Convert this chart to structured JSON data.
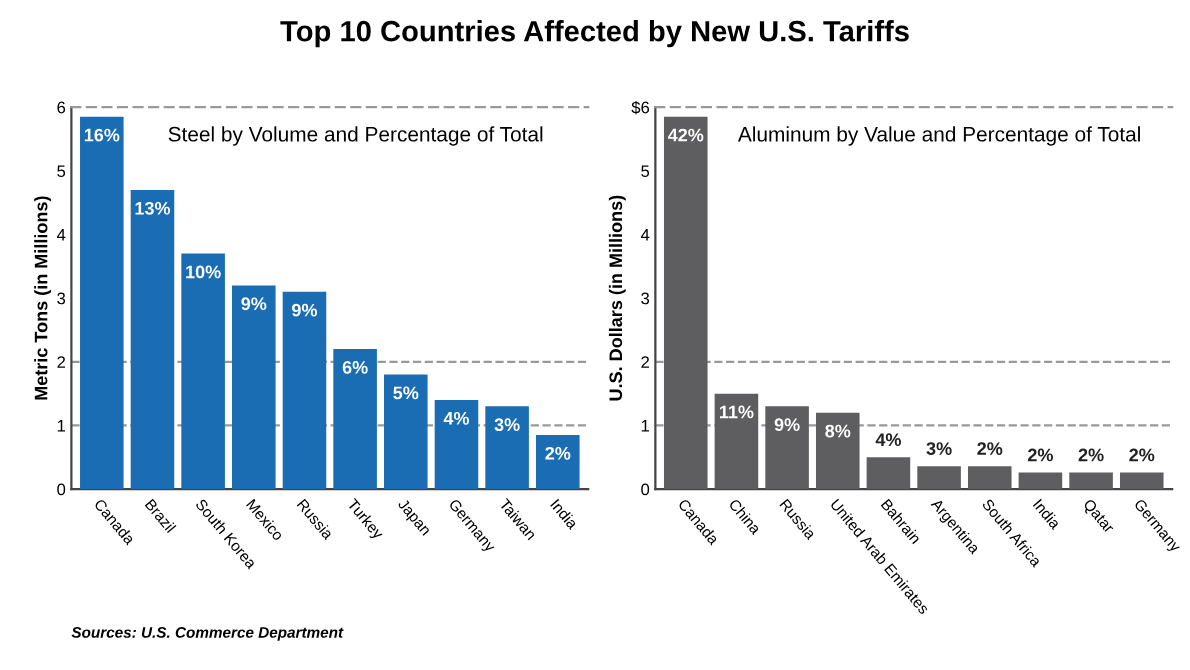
{
  "chart_data": [
    {
      "type": "bar",
      "title": "Top 10 Countries Affected by New U.S. Tariffs",
      "subtitle": "Steel by Volume and Percentage of Total",
      "ylabel": "Metric Tons (in Millions)",
      "categories": [
        "Canada",
        "Brazil",
        "South Korea",
        "Mexico",
        "Russia",
        "Turkey",
        "Japan",
        "Germany",
        "Taiwan",
        "India"
      ],
      "values": [
        5.85,
        4.7,
        3.7,
        3.2,
        3.1,
        2.2,
        1.8,
        1.4,
        1.3,
        0.85
      ],
      "color": "#1b6db3",
      "ylim": [
        0,
        6
      ],
      "yticks": [
        0,
        1,
        2,
        3,
        4,
        5,
        6
      ],
      "ref_lines": [
        {
          "axis": "y",
          "value": 1,
          "color": "#999999",
          "line_style": "dashed"
        },
        {
          "axis": "y",
          "value": 2,
          "color": "#999999",
          "line_style": "dashed"
        }
      ],
      "annotations": [
        {
          "text": "16%",
          "x": "Canada",
          "y": 5.85
        },
        {
          "text": "13%",
          "x": "Brazil",
          "y": 4.7
        },
        {
          "text": "10%",
          "x": "South Korea",
          "y": 3.7
        },
        {
          "text": "9%",
          "x": "Mexico",
          "y": 3.2
        },
        {
          "text": "9%",
          "x": "Russia",
          "y": 3.1
        },
        {
          "text": "6%",
          "x": "Turkey",
          "y": 2.2
        },
        {
          "text": "5%",
          "x": "Japan",
          "y": 1.8
        },
        {
          "text": "4%",
          "x": "Germany",
          "y": 1.4
        },
        {
          "text": "3%",
          "x": "Taiwan",
          "y": 1.3
        },
        {
          "text": "2%",
          "x": "India",
          "y": 0.85
        },
        "Sources: U.S. Commerce Department"
      ]
    },
    {
      "type": "bar",
      "subtitle": "Aluminum by Value and Percentage of Total",
      "ylabel": "U.S. Dollars (in Millions)",
      "categories": [
        "Canada",
        "China",
        "Russia",
        "United Arab Emirates",
        "Bahrain",
        "Argentina",
        "South Africa",
        "India",
        "Qatar",
        "Germany"
      ],
      "values": [
        5.85,
        1.5,
        1.3,
        1.2,
        0.5,
        0.36,
        0.36,
        0.26,
        0.26,
        0.26
      ],
      "color": "#5e5e60",
      "ylim": [
        0,
        6
      ],
      "yticks": [
        0,
        1,
        2,
        3,
        4,
        5,
        {
          "value": 6,
          "label": "$6"
        }
      ],
      "ref_lines": [
        {
          "axis": "y",
          "value": 1,
          "color": "#999999",
          "line_style": "dashed"
        },
        {
          "axis": "y",
          "value": 2,
          "color": "#999999",
          "line_style": "dashed"
        }
      ],
      "annotations": [
        {
          "text": "42%",
          "x": "Canada",
          "y": 5.85
        },
        {
          "text": "11%",
          "x": "China",
          "y": 1.5
        },
        {
          "text": "9%",
          "x": "Russia",
          "y": 1.3
        },
        {
          "text": "8%",
          "x": "United Arab Emirates",
          "y": 1.2
        },
        {
          "text": "4%",
          "x": "Bahrain",
          "y": 0.5
        },
        {
          "text": "3%",
          "x": "Argentina",
          "y": 0.36
        },
        {
          "text": "2%",
          "x": "South Africa",
          "y": 0.36
        },
        {
          "text": "2%",
          "x": "India",
          "y": 0.26
        },
        {
          "text": "2%",
          "x": "Qatar",
          "y": 0.26
        },
        {
          "text": "2%",
          "x": "Germany",
          "y": 0.26
        }
      ]
    }
  ]
}
